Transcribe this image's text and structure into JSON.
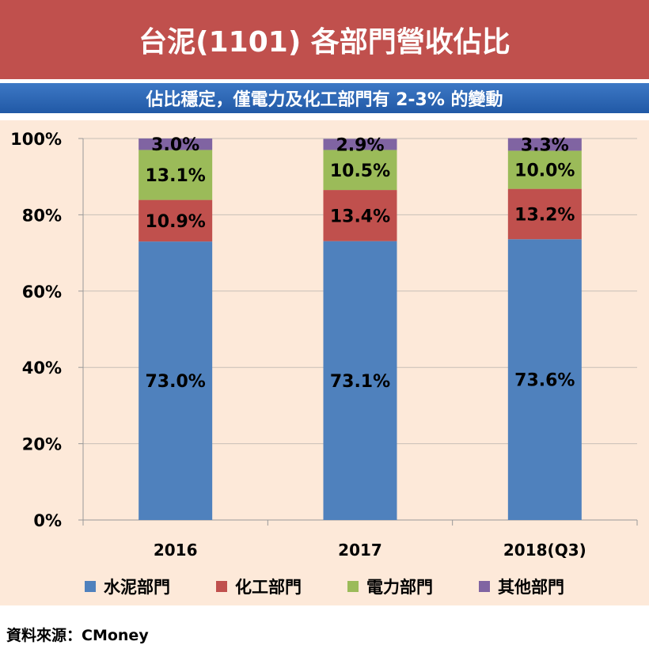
{
  "header": {
    "title": "台泥(1101) 各部門營收佔比",
    "subtitle": "佔比穩定，僅電力及化工部門有 2-3% 的變動"
  },
  "source": "資料來源：CMoney",
  "chart_data": {
    "type": "bar",
    "stacked": true,
    "title": "台泥(1101) 各部門營收佔比",
    "categories": [
      "2016",
      "2017",
      "2018(Q3)"
    ],
    "series": [
      {
        "name": "水泥部門",
        "color": "#4f81bd",
        "values": [
          73.0,
          73.1,
          73.6
        ],
        "labels": [
          "73.0%",
          "73.1%",
          "73.6%"
        ]
      },
      {
        "name": "化工部門",
        "color": "#c0504d",
        "values": [
          10.9,
          13.4,
          13.2
        ],
        "labels": [
          "10.9%",
          "13.4%",
          "13.2%"
        ]
      },
      {
        "name": "電力部門",
        "color": "#9bbb59",
        "values": [
          13.1,
          10.5,
          10.0
        ],
        "labels": [
          "13.1%",
          "10.5%",
          "10.0%"
        ]
      },
      {
        "name": "其他部門",
        "color": "#8064a2",
        "values": [
          3.0,
          2.9,
          3.3
        ],
        "labels": [
          "3.0%",
          "2.9%",
          "3.3%"
        ]
      }
    ],
    "ylim": [
      0,
      100
    ],
    "yticks": [
      "0%",
      "20%",
      "40%",
      "60%",
      "80%",
      "100%"
    ],
    "grid": true,
    "legend": "bottom"
  }
}
